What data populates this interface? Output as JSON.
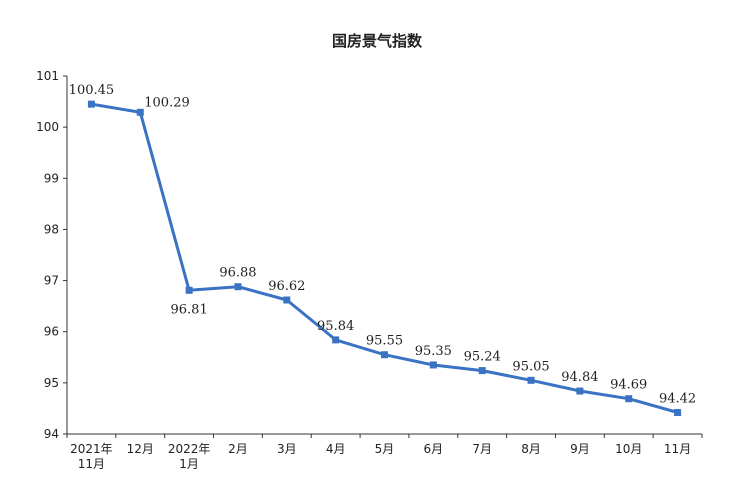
{
  "chart_data": {
    "type": "line",
    "title": "国房景气指数",
    "xlabel": "",
    "ylabel": "",
    "ylim": [
      94,
      101
    ],
    "yticks": [
      "94",
      "95",
      "96",
      "97",
      "98",
      "99",
      "100",
      "101"
    ],
    "grid": false,
    "legend": "none",
    "line_color": "#3a72c4",
    "categories": [
      [
        "2021年",
        "11月"
      ],
      [
        "12月"
      ],
      [
        "2022年",
        "1月"
      ],
      [
        "2月"
      ],
      [
        "3月"
      ],
      [
        "4月"
      ],
      [
        "5月"
      ],
      [
        "6月"
      ],
      [
        "7月"
      ],
      [
        "8月"
      ],
      [
        "9月"
      ],
      [
        "10月"
      ],
      [
        "11月"
      ]
    ],
    "values": [
      100.45,
      100.29,
      96.81,
      96.88,
      96.62,
      95.84,
      95.55,
      95.35,
      95.24,
      95.05,
      94.84,
      94.69,
      94.42
    ],
    "data_labels": [
      "100.45",
      "100.29",
      "96.81",
      "96.88",
      "96.62",
      "95.84",
      "95.55",
      "95.35",
      "95.24",
      "95.05",
      "94.84",
      "94.69",
      "94.42"
    ],
    "label_position": [
      "above",
      "above",
      "below",
      "above",
      "above",
      "above",
      "above",
      "above",
      "above",
      "above",
      "above",
      "above",
      "above"
    ]
  }
}
